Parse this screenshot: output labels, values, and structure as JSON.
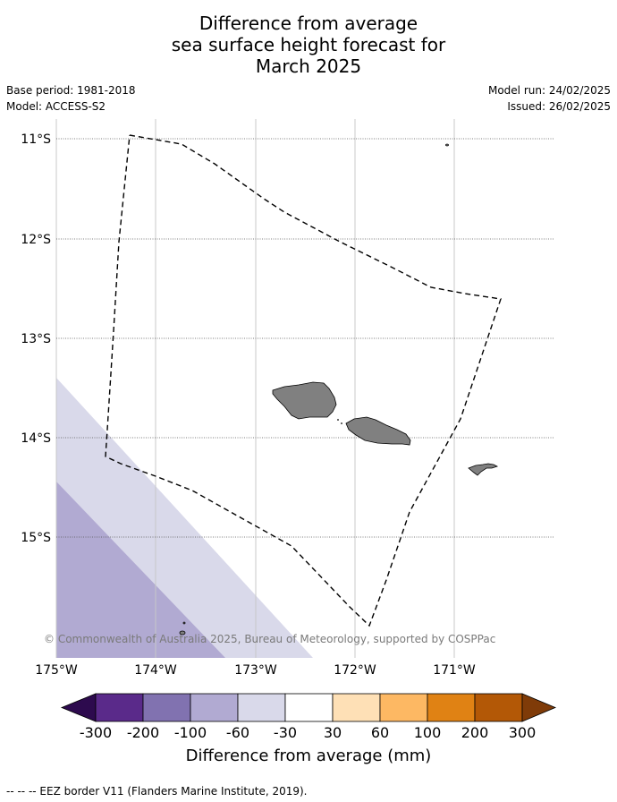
{
  "title": {
    "line1": "Difference from average",
    "line2": "sea surface height forecast for",
    "line3": "March 2025"
  },
  "meta": {
    "base_period": "Base period: 1981-2018",
    "model": "Model: ACCESS-S2",
    "model_run": "Model run: 24/02/2025",
    "issued": "Issued: 26/02/2025"
  },
  "map": {
    "lon_ticks": [
      "175°W",
      "174°W",
      "173°W",
      "172°W",
      "171°W"
    ],
    "lat_ticks": [
      "11°S",
      "12°S",
      "13°S",
      "14°S",
      "15°S"
    ],
    "copyright": "© Commonwealth of Australia 2025, Bureau of Meteorology, supported by COSPPac"
  },
  "colorbar": {
    "ticks": [
      "-300",
      "-200",
      "-100",
      "-60",
      "-30",
      "30",
      "60",
      "100",
      "200",
      "300"
    ],
    "colors": [
      "#2d0a4e",
      "#5a2a8a",
      "#8172b0",
      "#b1aad2",
      "#d9d9ea",
      "#ffffff",
      "#fee0b6",
      "#fdb863",
      "#e08214",
      "#b35806",
      "#7f3b08"
    ],
    "label": "Difference from average (mm)"
  },
  "footnote": "--  --  -- EEZ border V11 (Flanders Marine Institute, 2019)."
}
